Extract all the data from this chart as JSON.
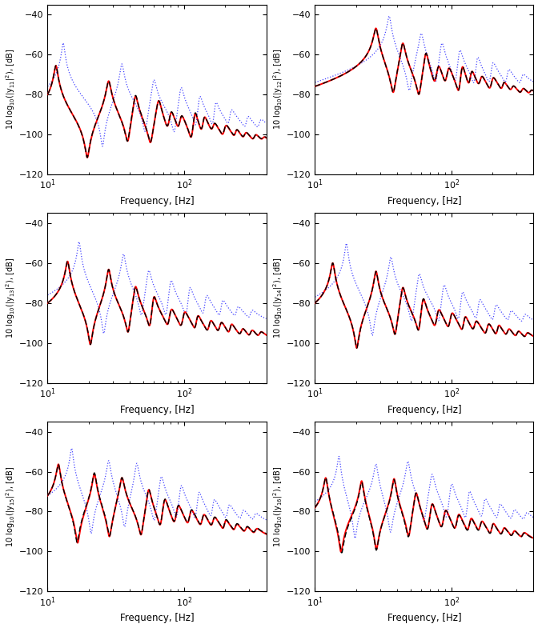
{
  "nrows": 3,
  "ncols": 2,
  "subplot_labels": [
    [
      "y",
      "11"
    ],
    [
      "y",
      "12"
    ],
    [
      "y",
      "13"
    ],
    [
      "y",
      "14"
    ],
    [
      "y",
      "15"
    ],
    [
      "y",
      "16"
    ]
  ],
  "xlabel": "Frequency, [Hz]",
  "ylim": [
    -120,
    -35
  ],
  "xlim_log": [
    1,
    2.602
  ],
  "yticks": [
    -120,
    -100,
    -80,
    -60,
    -40
  ],
  "figsize": [
    6.72,
    7.85
  ],
  "dpi": 100,
  "exp_color": "black",
  "rigid_color": "#4444ff",
  "flex_color": "red",
  "exp_lw": 1.0,
  "rigid_lw": 0.9,
  "flex_lw": 1.4
}
